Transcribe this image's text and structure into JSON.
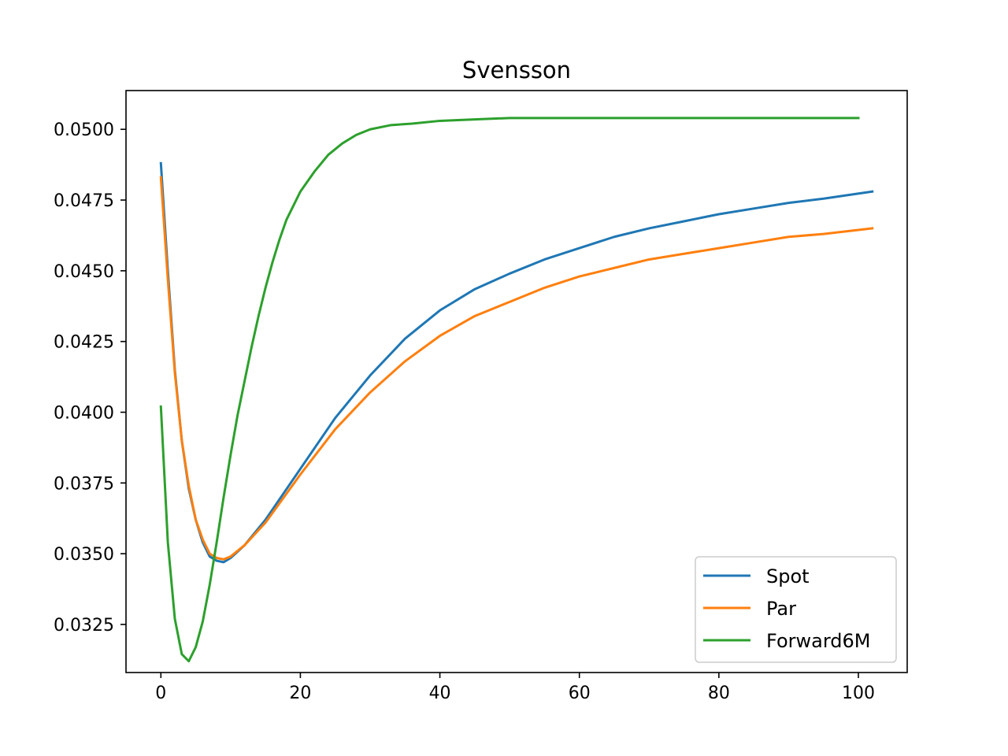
{
  "chart_data": {
    "type": "line",
    "title": "Svensson",
    "xlabel": "",
    "ylabel": "",
    "xlim": [
      -5,
      107
    ],
    "ylim": [
      0.0308,
      0.05137
    ],
    "x_ticks": [
      0,
      20,
      40,
      60,
      80,
      100
    ],
    "x_tick_labels": [
      "0",
      "20",
      "40",
      "60",
      "80",
      "100"
    ],
    "y_ticks": [
      0.0325,
      0.035,
      0.0375,
      0.04,
      0.0425,
      0.045,
      0.0475,
      0.05
    ],
    "y_tick_labels": [
      "0.0325",
      "0.0350",
      "0.0375",
      "0.0400",
      "0.0425",
      "0.0450",
      "0.0475",
      "0.0500"
    ],
    "grid": false,
    "legend_position": "lower-right",
    "series": [
      {
        "name": "Spot",
        "color": "#1f77b4",
        "points": [
          [
            0,
            0.0488
          ],
          [
            1,
            0.045
          ],
          [
            2,
            0.0415
          ],
          [
            3,
            0.039
          ],
          [
            4,
            0.0373
          ],
          [
            5,
            0.0362
          ],
          [
            6,
            0.0354
          ],
          [
            7,
            0.0349
          ],
          [
            8,
            0.03475
          ],
          [
            9,
            0.0347
          ],
          [
            10,
            0.03485
          ],
          [
            12,
            0.0353
          ],
          [
            15,
            0.0362
          ],
          [
            20,
            0.038
          ],
          [
            25,
            0.0398
          ],
          [
            30,
            0.0413
          ],
          [
            35,
            0.0426
          ],
          [
            40,
            0.0436
          ],
          [
            45,
            0.04435
          ],
          [
            50,
            0.0449
          ],
          [
            55,
            0.0454
          ],
          [
            60,
            0.0458
          ],
          [
            65,
            0.0462
          ],
          [
            70,
            0.0465
          ],
          [
            75,
            0.04675
          ],
          [
            80,
            0.047
          ],
          [
            85,
            0.0472
          ],
          [
            90,
            0.0474
          ],
          [
            95,
            0.04755
          ],
          [
            102,
            0.0478
          ]
        ]
      },
      {
        "name": "Par",
        "color": "#ff7f0e",
        "points": [
          [
            0,
            0.0483
          ],
          [
            1,
            0.0447
          ],
          [
            2,
            0.0414
          ],
          [
            3,
            0.039
          ],
          [
            4,
            0.0374
          ],
          [
            5,
            0.0362
          ],
          [
            6,
            0.0355
          ],
          [
            7,
            0.035
          ],
          [
            8,
            0.03485
          ],
          [
            9,
            0.0348
          ],
          [
            10,
            0.0349
          ],
          [
            12,
            0.0353
          ],
          [
            15,
            0.0361
          ],
          [
            20,
            0.0378
          ],
          [
            25,
            0.0394
          ],
          [
            30,
            0.0407
          ],
          [
            35,
            0.0418
          ],
          [
            40,
            0.0427
          ],
          [
            45,
            0.0434
          ],
          [
            50,
            0.0439
          ],
          [
            55,
            0.0444
          ],
          [
            60,
            0.0448
          ],
          [
            65,
            0.0451
          ],
          [
            70,
            0.0454
          ],
          [
            75,
            0.0456
          ],
          [
            80,
            0.0458
          ],
          [
            85,
            0.046
          ],
          [
            90,
            0.0462
          ],
          [
            95,
            0.0463
          ],
          [
            102,
            0.0465
          ]
        ]
      },
      {
        "name": "Forward6M",
        "color": "#2ca02c",
        "points": [
          [
            0,
            0.0402
          ],
          [
            1,
            0.0354
          ],
          [
            2,
            0.0327
          ],
          [
            3,
            0.03145
          ],
          [
            4,
            0.0312
          ],
          [
            5,
            0.0317
          ],
          [
            6,
            0.0326
          ],
          [
            7,
            0.0339
          ],
          [
            8,
            0.0354
          ],
          [
            9,
            0.037
          ],
          [
            10,
            0.0385
          ],
          [
            11,
            0.0399
          ],
          [
            12,
            0.0411
          ],
          [
            13,
            0.0423
          ],
          [
            14,
            0.0434
          ],
          [
            15,
            0.0444
          ],
          [
            16,
            0.0453
          ],
          [
            17,
            0.0461
          ],
          [
            18,
            0.0468
          ],
          [
            19,
            0.0473
          ],
          [
            20,
            0.0478
          ],
          [
            22,
            0.0485
          ],
          [
            24,
            0.0491
          ],
          [
            26,
            0.0495
          ],
          [
            28,
            0.0498
          ],
          [
            30,
            0.05
          ],
          [
            33,
            0.05015
          ],
          [
            36,
            0.0502
          ],
          [
            40,
            0.0503
          ],
          [
            45,
            0.05035
          ],
          [
            50,
            0.0504
          ],
          [
            60,
            0.0504
          ],
          [
            70,
            0.0504
          ],
          [
            80,
            0.0504
          ],
          [
            90,
            0.0504
          ],
          [
            100,
            0.0504
          ]
        ]
      }
    ]
  }
}
